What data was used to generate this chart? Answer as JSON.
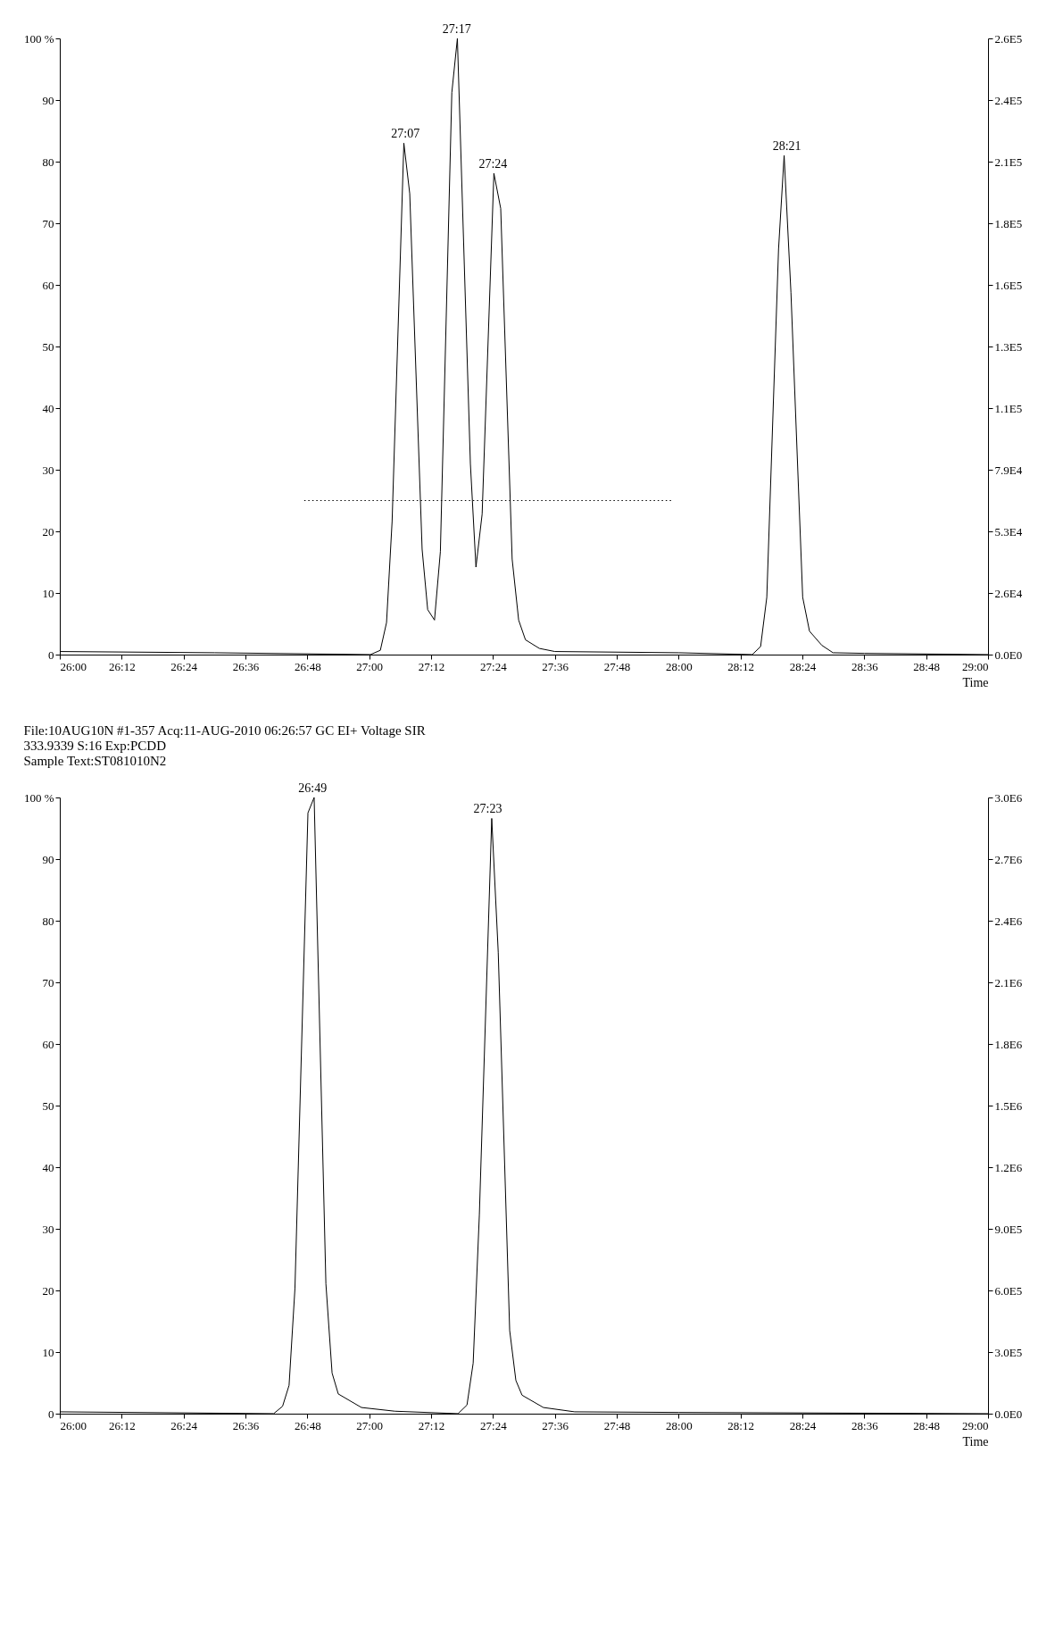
{
  "chart_data": [
    {
      "type": "line",
      "xlabel": "Time",
      "xlim": [
        26,
        29
      ],
      "ylim": [
        0,
        100
      ],
      "y2lim": [
        0,
        264000
      ],
      "grid": false,
      "xticks": [
        {
          "value": 26,
          "label": "26:00"
        },
        {
          "value": 26.2,
          "label": "26:12"
        },
        {
          "value": 26.4,
          "label": "26:24"
        },
        {
          "value": 26.6,
          "label": "26:36"
        },
        {
          "value": 26.8,
          "label": "26:48"
        },
        {
          "value": 27,
          "label": "27:00"
        },
        {
          "value": 27.2,
          "label": "27:12"
        },
        {
          "value": 27.4,
          "label": "27:24"
        },
        {
          "value": 27.6,
          "label": "27:36"
        },
        {
          "value": 27.8,
          "label": "27:48"
        },
        {
          "value": 28,
          "label": "28:00"
        },
        {
          "value": 28.2,
          "label": "28:12"
        },
        {
          "value": 28.4,
          "label": "28:24"
        },
        {
          "value": 28.6,
          "label": "28:36"
        },
        {
          "value": 28.8,
          "label": "28:48"
        },
        {
          "value": 29,
          "label": "29:00"
        }
      ],
      "yticks": [
        0,
        10,
        20,
        30,
        40,
        50,
        60,
        70,
        80,
        90,
        {
          "value": 100,
          "label": "100 %"
        }
      ],
      "y2ticks": [
        {
          "value": 0,
          "label": "0.0E0"
        },
        {
          "value": 26400,
          "label": "2.6E4"
        },
        {
          "value": 52800,
          "label": "5.3E4"
        },
        {
          "value": 79200,
          "label": "7.9E4"
        },
        {
          "value": 105600,
          "label": "1.1E5"
        },
        {
          "value": 132000,
          "label": "1.3E5"
        },
        {
          "value": 158400,
          "label": "1.6E5"
        },
        {
          "value": 184800,
          "label": "1.8E5"
        },
        {
          "value": 211200,
          "label": "2.1E5"
        },
        {
          "value": 237600,
          "label": "2.4E5"
        },
        {
          "value": 264000,
          "label": "2.6E5"
        }
      ],
      "series": [
        {
          "color": "#000000",
          "line_style": "solid",
          "x": [
            26.0,
            26.5,
            27.004,
            27.036,
            27.056,
            27.074,
            27.112,
            27.131,
            27.171,
            27.189,
            27.211,
            27.23,
            27.267,
            27.285,
            27.327,
            27.345,
            27.365,
            27.403,
            27.425,
            27.462,
            27.483,
            27.505,
            27.55,
            27.6,
            28.0,
            28.238,
            28.265,
            28.285,
            28.323,
            28.341,
            28.363,
            28.401,
            28.423,
            28.463,
            28.499,
            28.6,
            29.0
          ],
          "values": [
            0.5,
            0.3,
            0,
            0.7,
            5.2,
            21.6,
            83,
            74.8,
            17.1,
            7.3,
            5.6,
            16.7,
            91.2,
            100,
            31,
            14.2,
            22.8,
            78.1,
            72.4,
            15.5,
            5.6,
            2.4,
            1,
            0.5,
            0.3,
            0,
            1.3,
            9.3,
            65.8,
            81,
            58.8,
            9.3,
            3.8,
            1.5,
            0.3,
            0.2,
            0
          ]
        },
        {
          "color": "#000000",
          "line_style": "dotted",
          "x": [
            26.79,
            27.98
          ],
          "values": [
            25,
            25
          ]
        }
      ],
      "annotations": [
        {
          "text": "27:07",
          "x": 27.117,
          "y": 83
        },
        {
          "text": "27:17",
          "x": 27.283,
          "y": 100
        },
        {
          "text": "27:24",
          "x": 27.4,
          "y": 78.1
        },
        {
          "text": "28:21",
          "x": 28.35,
          "y": 81
        }
      ]
    },
    {
      "type": "line",
      "xlabel": "Time",
      "xlim": [
        26,
        29
      ],
      "ylim": [
        0,
        100
      ],
      "y2lim": [
        0,
        3000000
      ],
      "grid": false,
      "xticks": [
        {
          "value": 26,
          "label": "26:00"
        },
        {
          "value": 26.2,
          "label": "26:12"
        },
        {
          "value": 26.4,
          "label": "26:24"
        },
        {
          "value": 26.6,
          "label": "26:36"
        },
        {
          "value": 26.8,
          "label": "26:48"
        },
        {
          "value": 27,
          "label": "27:00"
        },
        {
          "value": 27.2,
          "label": "27:12"
        },
        {
          "value": 27.4,
          "label": "27:24"
        },
        {
          "value": 27.6,
          "label": "27:36"
        },
        {
          "value": 27.8,
          "label": "27:48"
        },
        {
          "value": 28,
          "label": "28:00"
        },
        {
          "value": 28.2,
          "label": "28:12"
        },
        {
          "value": 28.4,
          "label": "28:24"
        },
        {
          "value": 28.6,
          "label": "28:36"
        },
        {
          "value": 28.8,
          "label": "28:48"
        },
        {
          "value": 29,
          "label": "29:00"
        }
      ],
      "yticks": [
        0,
        10,
        20,
        30,
        40,
        50,
        60,
        70,
        80,
        90,
        {
          "value": 100,
          "label": "100 %"
        }
      ],
      "y2ticks": [
        {
          "value": 0,
          "label": "0.0E0"
        },
        {
          "value": 300000,
          "label": "3.0E5"
        },
        {
          "value": 600000,
          "label": "6.0E5"
        },
        {
          "value": 900000,
          "label": "9.0E5"
        },
        {
          "value": 1200000,
          "label": "1.2E6"
        },
        {
          "value": 1500000,
          "label": "1.5E6"
        },
        {
          "value": 1800000,
          "label": "1.8E6"
        },
        {
          "value": 2100000,
          "label": "2.1E6"
        },
        {
          "value": 2400000,
          "label": "2.4E6"
        },
        {
          "value": 2700000,
          "label": "2.7E6"
        },
        {
          "value": 3000000,
          "label": "3.0E6"
        }
      ],
      "series": [
        {
          "color": "#000000",
          "line_style": "solid",
          "x": [
            26.0,
            26.691,
            26.72,
            26.741,
            26.76,
            26.802,
            26.822,
            26.86,
            26.88,
            26.9,
            26.975,
            27.083,
            27.287,
            27.316,
            27.336,
            27.356,
            27.396,
            27.417,
            27.454,
            27.474,
            27.494,
            27.563,
            27.664,
            28.0,
            29.0
          ],
          "values": [
            0.3,
            0,
            1.2,
            4.6,
            20.3,
            97.5,
            100,
            21.1,
            6.6,
            3.2,
            1,
            0.4,
            0,
            1.4,
            8.2,
            32.3,
            96.6,
            74.9,
            13.5,
            5.4,
            3,
            1,
            0.3,
            0.2,
            0
          ]
        }
      ],
      "annotations": [
        "File:10AUG10N #1-357 Acq:11-AUG-2010 06:26:57 GC EI+ Voltage SIR",
        "333.9339 S:16 Exp:PCDD",
        "Sample Text:ST081010N2",
        {
          "text": "26:49",
          "x": 26.817,
          "y": 100
        },
        {
          "text": "27:23",
          "x": 27.383,
          "y": 96.6
        }
      ]
    }
  ]
}
